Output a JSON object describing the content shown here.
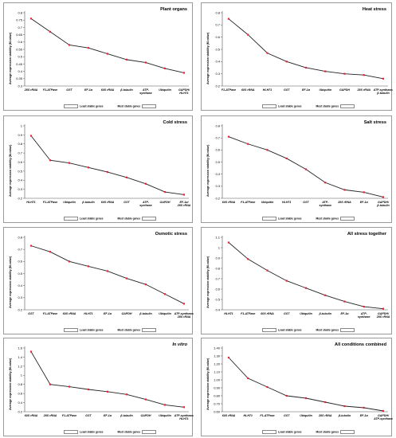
{
  "legend": {
    "least": "Least stable genes",
    "most": "Most stable genes"
  },
  "chart_data": [
    {
      "type": "line",
      "title": "Plant organs",
      "ylabel": "Average expression stability (M-value)",
      "ylim": [
        0.3,
        0.8
      ],
      "yticks": [
        0.3,
        0.35,
        0.4,
        0.45,
        0.5,
        0.55,
        0.6,
        0.65,
        0.7,
        0.75,
        0.8
      ],
      "categories": [
        "28S rRNA",
        "F1-ATPase",
        "GST",
        "EF-1α",
        "60S rRNA",
        "β-tubulin",
        "ATP-synthase",
        "Ubiquitin",
        "GAPDH/ HLH71"
      ],
      "values": [
        0.76,
        0.67,
        0.58,
        0.56,
        0.52,
        0.48,
        0.46,
        0.42,
        0.39
      ]
    },
    {
      "type": "line",
      "title": "Heat stress",
      "ylabel": "Average expression stability (M-value)",
      "ylim": [
        0.2,
        0.8
      ],
      "yticks": [
        0.2,
        0.3,
        0.4,
        0.5,
        0.6,
        0.7,
        0.8
      ],
      "categories": [
        "F1-ATPase",
        "60S rRNA",
        "HLH71",
        "GST",
        "EF-1α",
        "Ubiquitin",
        "GAPDH",
        "28S rRNA",
        "ATP-synthase/ β-tubulin"
      ],
      "values": [
        0.75,
        0.62,
        0.47,
        0.4,
        0.35,
        0.32,
        0.3,
        0.29,
        0.26
      ]
    },
    {
      "type": "line",
      "title": "Cold stress",
      "ylabel": "Average expression stability (M-value)",
      "ylim": [
        0.2,
        1.0
      ],
      "yticks": [
        0.2,
        0.3,
        0.4,
        0.5,
        0.6,
        0.7,
        0.8,
        0.9,
        1
      ],
      "categories": [
        "HLH71",
        "F1-ATPase",
        "Ubiquitin",
        "β-tubulin",
        "60S rRNA",
        "GST",
        "ATP-synthase",
        "GAPDH",
        "EF-1α/ 28S rRNA"
      ],
      "values": [
        0.89,
        0.62,
        0.59,
        0.54,
        0.49,
        0.43,
        0.36,
        0.27,
        0.24
      ]
    },
    {
      "type": "line",
      "title": "Salt stress",
      "ylabel": "Average expression stability (M-value)",
      "ylim": [
        0.2,
        0.8
      ],
      "yticks": [
        0.2,
        0.3,
        0.4,
        0.5,
        0.6,
        0.7,
        0.8
      ],
      "categories": [
        "60S rRNA",
        "F1-ATPase",
        "Ubiquitin",
        "HLH71",
        "GST",
        "ATP-synthase",
        "28S rRNA",
        "EF-1α",
        "GAPDH/ β-tubulin"
      ],
      "values": [
        0.71,
        0.65,
        0.6,
        0.53,
        0.44,
        0.33,
        0.27,
        0.25,
        0.21
      ]
    },
    {
      "type": "line",
      "title": "Osmotic stress",
      "ylabel": "Average expression stability (M-value)",
      "ylim": [
        0.2,
        0.8
      ],
      "yticks": [
        0.2,
        0.3,
        0.4,
        0.5,
        0.6,
        0.7,
        0.8
      ],
      "categories": [
        "GST",
        "F1-ATPase",
        "60S rRNA",
        "HLH71",
        "EF-1α",
        "GAPDH",
        "β-tubulin",
        "Ubiquitin",
        "ATP-synthase/ 28S rRNA"
      ],
      "values": [
        0.73,
        0.68,
        0.6,
        0.56,
        0.52,
        0.46,
        0.41,
        0.33,
        0.25
      ]
    },
    {
      "type": "line",
      "title": "All stress together",
      "ylabel": "Average expression stability (M-value)",
      "ylim": [
        0.4,
        1.1
      ],
      "yticks": [
        0.4,
        0.5,
        0.6,
        0.7,
        0.8,
        0.9,
        1,
        1.1
      ],
      "categories": [
        "HLH71",
        "F1-ATPase",
        "60S rRNA",
        "GST",
        "Ubiquitin",
        "β-tubulin",
        "EF-1α",
        "ATP-synthase",
        "GAPDH/ 28S rRNA"
      ],
      "values": [
        1.05,
        0.89,
        0.78,
        0.68,
        0.61,
        0.54,
        0.48,
        0.43,
        0.41
      ]
    },
    {
      "type": "line",
      "title": "In vitro",
      "ylabel": "Average expression stability (M-value)",
      "ylim": [
        0.2,
        1.6
      ],
      "yticks": [
        0.2,
        0.4,
        0.6,
        0.8,
        1,
        1.2,
        1.4,
        1.6
      ],
      "categories": [
        "60S rRNA",
        "28S rRNA",
        "F1-ATPase",
        "GST",
        "EF-1α",
        "β-tubulin",
        "GAPDH",
        "Ubiquitin",
        "ATP-synthase/ HLH71"
      ],
      "values": [
        1.52,
        0.8,
        0.75,
        0.69,
        0.64,
        0.58,
        0.47,
        0.35,
        0.3
      ]
    },
    {
      "type": "line",
      "title": "All conditions combined",
      "ylabel": "Average expression stability (M-value)",
      "ylim": [
        0.6,
        1.4
      ],
      "yticks": [
        0.6,
        0.7,
        0.8,
        0.9,
        1.0,
        1.1,
        1.2,
        1.3,
        1.4
      ],
      "yticklabels": [
        "0.60",
        "0.70",
        "0.80",
        "0.90",
        "1.00",
        "1.10",
        "1.20",
        "1.30",
        "1.40"
      ],
      "categories": [
        "60S rRNA",
        "HLH71",
        "F1-ATPase",
        "GST",
        "Ubiquitin",
        "28S rRNA",
        "β-tubulin",
        "EF-1α",
        "GAPDH/ ATP-synthase"
      ],
      "values": [
        1.28,
        1.02,
        0.91,
        0.8,
        0.77,
        0.72,
        0.67,
        0.65,
        0.61
      ]
    }
  ]
}
